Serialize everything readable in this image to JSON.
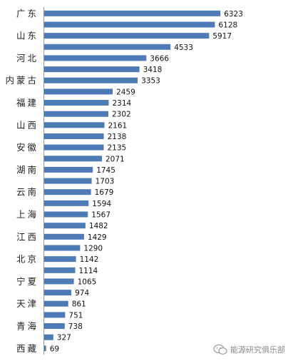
{
  "chart_data": {
    "type": "bar",
    "orientation": "horizontal",
    "categories": [
      "广东",
      "",
      "山东",
      "",
      "河北",
      "",
      "内蒙古",
      "",
      "福建",
      "",
      "山西",
      "",
      "安徽",
      "",
      "湖南",
      "",
      "云南",
      "",
      "上海",
      "",
      "江西",
      "",
      "北京",
      "",
      "宁夏",
      "",
      "天津",
      "",
      "青海",
      "",
      "西藏"
    ],
    "values": [
      6323,
      6128,
      5917,
      4533,
      3666,
      3418,
      3353,
      2459,
      2314,
      2302,
      2161,
      2138,
      2135,
      2071,
      1745,
      1703,
      1679,
      1594,
      1567,
      1482,
      1429,
      1290,
      1142,
      1114,
      1065,
      974,
      861,
      751,
      738,
      327,
      69
    ],
    "xlim": [
      0,
      6600
    ],
    "bar_color": "#4e7bb6",
    "grid": false
  },
  "watermark": {
    "text": "能源研究俱乐部",
    "icon": "wechat-icon"
  }
}
